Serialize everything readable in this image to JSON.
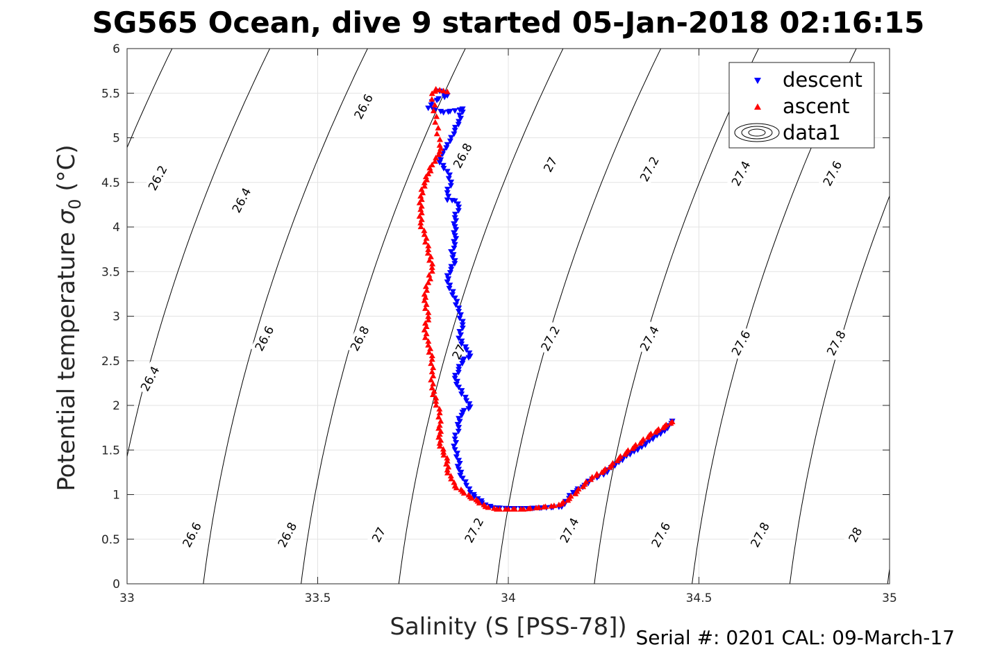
{
  "figure": {
    "title": "SG565 Ocean, dive 9 started 05-Jan-2018 02:16:15",
    "serial": "Serial #: 0201  CAL: 09-March-17"
  },
  "chart_data": {
    "type": "scatter",
    "xlabel": "Salinity (S [PSS-78])",
    "ylabel_main": "Potential temperature",
    "ylabel_sigma": "σ",
    "ylabel_sub": "0",
    "ylabel_unit": "(°C)",
    "xlim": [
      33,
      35
    ],
    "ylim": [
      0,
      6
    ],
    "xticks": [
      "33",
      "33.5",
      "34",
      "34.5",
      "35"
    ],
    "yticks": [
      "0",
      "0.5",
      "1",
      "1.5",
      "2",
      "2.5",
      "3",
      "3.5",
      "4",
      "4.5",
      "5",
      "5.5",
      "6"
    ],
    "grid": true,
    "legend_position": "top-right",
    "legend": [
      "descent",
      "ascent",
      "data1"
    ],
    "colors": {
      "descent": "#0000ff",
      "ascent": "#ff0000",
      "contour": "#000000",
      "grid": "#e3e3e3"
    },
    "contours": {
      "levels": [
        "26.2",
        "26.4",
        "26.6",
        "26.8",
        "27",
        "27.2",
        "27.4",
        "27.6",
        "27.8",
        "28"
      ],
      "labels": [
        {
          "text": "26.2",
          "S": 33.08,
          "T": 4.55
        },
        {
          "text": "26.4",
          "S": 33.3,
          "T": 4.3
        },
        {
          "text": "26.6",
          "S": 33.62,
          "T": 5.35
        },
        {
          "text": "26.8",
          "S": 33.88,
          "T": 4.8
        },
        {
          "text": "27",
          "S": 34.11,
          "T": 4.7
        },
        {
          "text": "27.2",
          "S": 34.37,
          "T": 4.65
        },
        {
          "text": "27.4",
          "S": 34.61,
          "T": 4.6
        },
        {
          "text": "27.6",
          "S": 34.85,
          "T": 4.6
        },
        {
          "text": "26.4",
          "S": 33.06,
          "T": 2.3
        },
        {
          "text": "26.6",
          "S": 33.36,
          "T": 2.75
        },
        {
          "text": "26.8",
          "S": 33.61,
          "T": 2.75
        },
        {
          "text": "27",
          "S": 33.87,
          "T": 2.6
        },
        {
          "text": "27.2",
          "S": 34.11,
          "T": 2.75
        },
        {
          "text": "27.4",
          "S": 34.37,
          "T": 2.75
        },
        {
          "text": "27.6",
          "S": 34.61,
          "T": 2.7
        },
        {
          "text": "27.8",
          "S": 34.86,
          "T": 2.7
        },
        {
          "text": "26.6",
          "S": 33.17,
          "T": 0.55
        },
        {
          "text": "26.8",
          "S": 33.42,
          "T": 0.55
        },
        {
          "text": "27",
          "S": 33.66,
          "T": 0.55
        },
        {
          "text": "27.2",
          "S": 33.91,
          "T": 0.6
        },
        {
          "text": "27.4",
          "S": 34.16,
          "T": 0.6
        },
        {
          "text": "27.6",
          "S": 34.4,
          "T": 0.55
        },
        {
          "text": "27.8",
          "S": 34.66,
          "T": 0.55
        },
        {
          "text": "28",
          "S": 34.91,
          "T": 0.55
        }
      ]
    },
    "series": [
      {
        "name": "descent",
        "marker": "triangle-down",
        "points": [
          [
            33.82,
            5.52
          ],
          [
            33.84,
            5.47
          ],
          [
            33.8,
            5.4
          ],
          [
            33.79,
            5.33
          ],
          [
            33.83,
            5.28
          ],
          [
            33.86,
            5.3
          ],
          [
            33.88,
            5.32
          ],
          [
            33.87,
            5.18
          ],
          [
            33.86,
            5.08
          ],
          [
            33.85,
            5.0
          ],
          [
            33.84,
            4.92
          ],
          [
            33.83,
            4.85
          ],
          [
            33.82,
            4.78
          ],
          [
            33.82,
            4.72
          ],
          [
            33.84,
            4.62
          ],
          [
            33.85,
            4.5
          ],
          [
            33.84,
            4.38
          ],
          [
            33.84,
            4.3
          ],
          [
            33.86,
            4.29
          ],
          [
            33.87,
            4.22
          ],
          [
            33.86,
            4.1
          ],
          [
            33.86,
            4.0
          ],
          [
            33.86,
            3.9
          ],
          [
            33.86,
            3.8
          ],
          [
            33.85,
            3.72
          ],
          [
            33.86,
            3.62
          ],
          [
            33.85,
            3.52
          ],
          [
            33.84,
            3.45
          ],
          [
            33.84,
            3.38
          ],
          [
            33.86,
            3.2
          ],
          [
            33.87,
            3.05
          ],
          [
            33.88,
            2.9
          ],
          [
            33.87,
            2.75
          ],
          [
            33.89,
            2.62
          ],
          [
            33.9,
            2.55
          ],
          [
            33.88,
            2.5
          ],
          [
            33.87,
            2.4
          ],
          [
            33.86,
            2.3
          ],
          [
            33.87,
            2.2
          ],
          [
            33.89,
            2.05
          ],
          [
            33.9,
            1.98
          ],
          [
            33.88,
            1.92
          ],
          [
            33.87,
            1.85
          ],
          [
            33.87,
            1.75
          ],
          [
            33.86,
            1.62
          ],
          [
            33.86,
            1.5
          ],
          [
            33.87,
            1.38
          ],
          [
            33.87,
            1.28
          ],
          [
            33.88,
            1.18
          ],
          [
            33.89,
            1.1
          ],
          [
            33.9,
            1.02
          ],
          [
            33.92,
            0.95
          ],
          [
            33.94,
            0.88
          ],
          [
            33.96,
            0.85
          ],
          [
            34.0,
            0.84
          ],
          [
            34.05,
            0.84
          ],
          [
            34.1,
            0.85
          ],
          [
            34.14,
            0.86
          ],
          [
            34.15,
            0.92
          ],
          [
            34.17,
            1.02
          ],
          [
            34.2,
            1.1
          ],
          [
            34.22,
            1.17
          ],
          [
            34.25,
            1.22
          ],
          [
            34.27,
            1.3
          ],
          [
            34.29,
            1.36
          ],
          [
            34.31,
            1.43
          ],
          [
            34.33,
            1.48
          ],
          [
            34.35,
            1.53
          ],
          [
            34.37,
            1.6
          ],
          [
            34.39,
            1.66
          ],
          [
            34.41,
            1.71
          ],
          [
            34.42,
            1.77
          ],
          [
            34.43,
            1.82
          ]
        ]
      },
      {
        "name": "ascent",
        "marker": "triangle-up",
        "points": [
          [
            34.43,
            1.82
          ],
          [
            34.41,
            1.77
          ],
          [
            34.39,
            1.72
          ],
          [
            34.37,
            1.67
          ],
          [
            34.35,
            1.6
          ],
          [
            34.33,
            1.54
          ],
          [
            34.31,
            1.48
          ],
          [
            34.29,
            1.41
          ],
          [
            34.27,
            1.33
          ],
          [
            34.25,
            1.27
          ],
          [
            34.22,
            1.2
          ],
          [
            34.2,
            1.12
          ],
          [
            34.18,
            1.04
          ],
          [
            34.16,
            0.96
          ],
          [
            34.14,
            0.9
          ],
          [
            34.12,
            0.88
          ],
          [
            34.08,
            0.86
          ],
          [
            34.04,
            0.84
          ],
          [
            34.0,
            0.84
          ],
          [
            33.97,
            0.84
          ],
          [
            33.94,
            0.87
          ],
          [
            33.92,
            0.93
          ],
          [
            33.9,
            0.98
          ],
          [
            33.88,
            1.04
          ],
          [
            33.86,
            1.1
          ],
          [
            33.85,
            1.18
          ],
          [
            33.84,
            1.28
          ],
          [
            33.84,
            1.38
          ],
          [
            33.83,
            1.48
          ],
          [
            33.82,
            1.58
          ],
          [
            33.82,
            1.68
          ],
          [
            33.82,
            1.78
          ],
          [
            33.82,
            1.92
          ],
          [
            33.81,
            2.05
          ],
          [
            33.8,
            2.2
          ],
          [
            33.8,
            2.38
          ],
          [
            33.8,
            2.52
          ],
          [
            33.79,
            2.68
          ],
          [
            33.78,
            2.85
          ],
          [
            33.79,
            3.0
          ],
          [
            33.78,
            3.18
          ],
          [
            33.78,
            3.25
          ],
          [
            33.79,
            3.38
          ],
          [
            33.8,
            3.55
          ],
          [
            33.79,
            3.75
          ],
          [
            33.78,
            3.92
          ],
          [
            33.77,
            4.05
          ],
          [
            33.77,
            4.2
          ],
          [
            33.77,
            4.35
          ],
          [
            33.78,
            4.5
          ],
          [
            33.79,
            4.6
          ],
          [
            33.8,
            4.7
          ],
          [
            33.81,
            4.78
          ],
          [
            33.82,
            4.85
          ],
          [
            33.82,
            4.92
          ],
          [
            33.8,
            5.5
          ],
          [
            33.81,
            5.55
          ],
          [
            33.82,
            5.54
          ],
          [
            33.83,
            5.53
          ],
          [
            33.84,
            5.52
          ]
        ]
      }
    ]
  }
}
